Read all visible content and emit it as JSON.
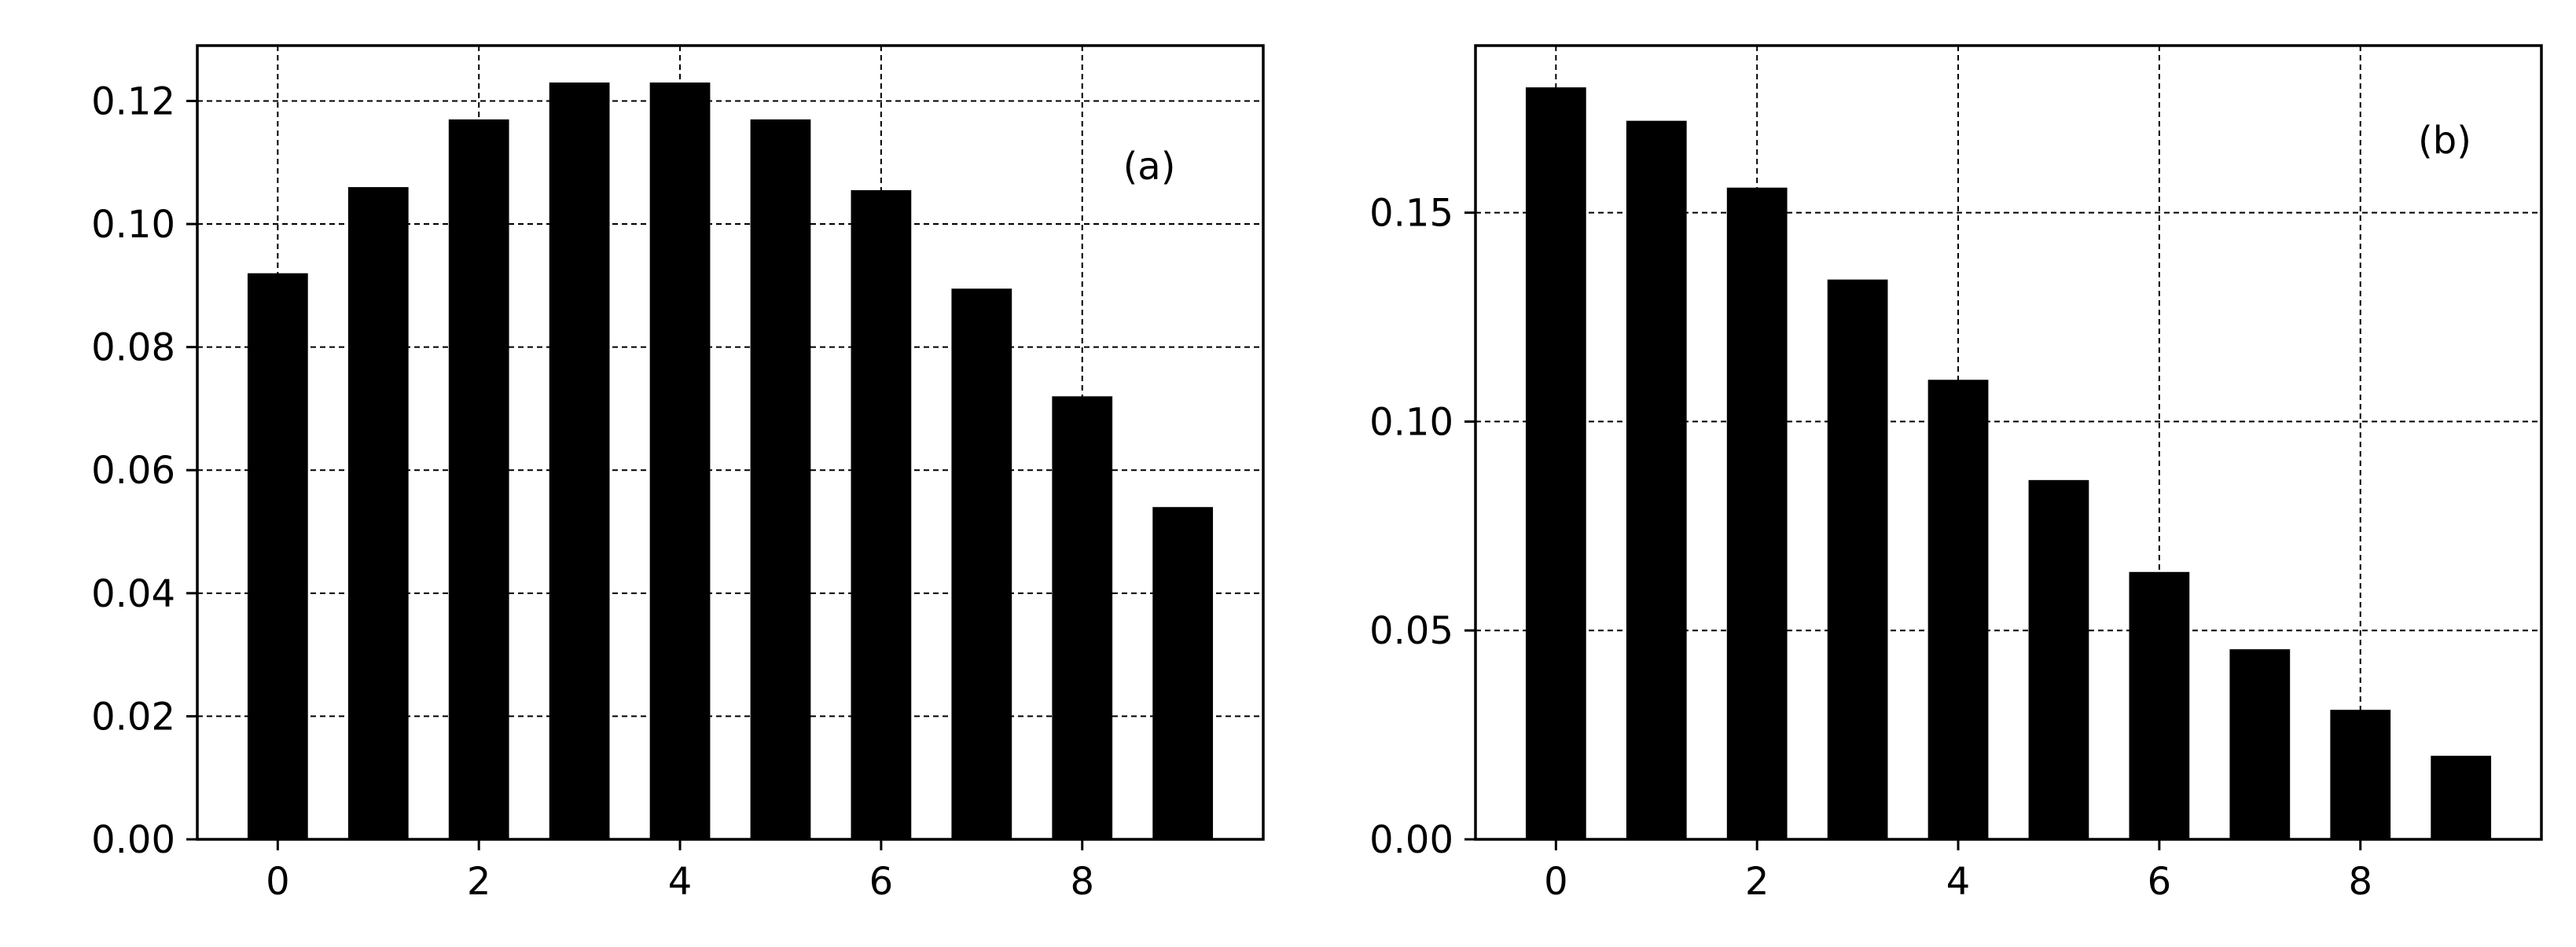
{
  "chart_data": [
    {
      "type": "bar",
      "panel_label": "(a)",
      "x": [
        0,
        1,
        2,
        3,
        4,
        5,
        6,
        7,
        8,
        9
      ],
      "values": [
        0.092,
        0.106,
        0.117,
        0.123,
        0.123,
        0.117,
        0.1055,
        0.0895,
        0.072,
        0.054
      ],
      "xlim": [
        -0.8,
        9.8
      ],
      "ylim": [
        0,
        0.129
      ],
      "xticks": [
        0,
        2,
        4,
        6,
        8
      ],
      "xtick_labels": [
        "0",
        "2",
        "4",
        "6",
        "8"
      ],
      "yticks": [
        0,
        0.02,
        0.04,
        0.06,
        0.08,
        0.1,
        0.12
      ],
      "ytick_labels": [
        "0.00",
        "0.02",
        "0.04",
        "0.06",
        "0.08",
        "0.10",
        "0.12"
      ],
      "grid": true,
      "bar_color": "#000000"
    },
    {
      "type": "bar",
      "panel_label": "(b)",
      "x": [
        0,
        1,
        2,
        3,
        4,
        5,
        6,
        7,
        8,
        9
      ],
      "values": [
        0.18,
        0.172,
        0.156,
        0.134,
        0.11,
        0.086,
        0.064,
        0.0455,
        0.031,
        0.02
      ],
      "xlim": [
        -0.8,
        9.8
      ],
      "ylim": [
        0,
        0.19
      ],
      "xticks": [
        0,
        2,
        4,
        6,
        8
      ],
      "xtick_labels": [
        "0",
        "2",
        "4",
        "6",
        "8"
      ],
      "yticks": [
        0,
        0.05,
        0.1,
        0.15
      ],
      "ytick_labels": [
        "0.00",
        "0.05",
        "0.10",
        "0.15"
      ],
      "grid": true,
      "bar_color": "#000000"
    }
  ]
}
